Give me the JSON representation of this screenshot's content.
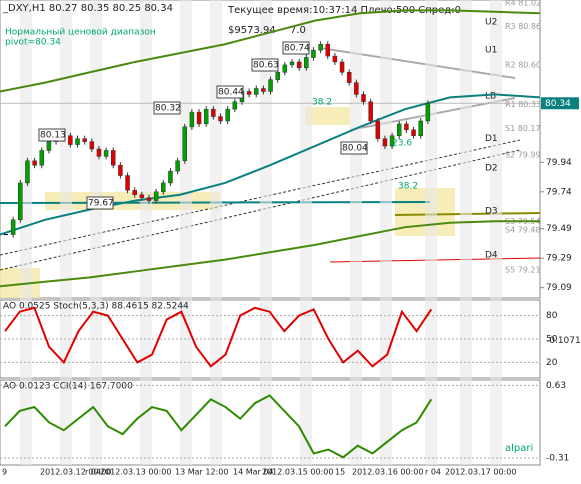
{
  "header": {
    "symbol": "_DXY,H1 80.27 80.35 80.25 80.34",
    "indicator": "Нормальный ценовой диапазон",
    "pivot": "pivot=80.34",
    "status": "Текущее время:10:37:14 Плечо:500 Спред:0",
    "balance": "$9573.94",
    "extra": "7.0",
    "logo": "alpari"
  },
  "annotations": [
    "80.13",
    "80.32",
    "80.44",
    "80.63",
    "80.74",
    "79.67",
    "80.04",
    "38.2",
    "23.6",
    "38.2"
  ],
  "time_labels": [
    "9",
    "2012.03.12 00:00",
    "r 04",
    "2012.03.13 00:00",
    "13 Mar 12:00",
    "14 Mar 04",
    "2012.03.15 00:00",
    "15",
    "2012.03.16 00:00",
    "r 04",
    "2012.03.17 00:00"
  ],
  "chart_data": [
    {
      "type": "candlestick",
      "color_up": "#00a000",
      "color_down": "#e00000",
      "values": [
        79.45,
        79.55,
        79.8,
        79.95,
        79.92,
        80.02,
        80.08,
        80.1,
        80.12,
        80.06,
        80.1,
        80.08,
        80.03,
        79.98,
        80.02,
        79.92,
        79.85,
        79.75,
        79.72,
        79.7,
        79.68,
        79.74,
        79.8,
        79.88,
        79.95,
        80.18,
        80.28,
        80.2,
        80.3,
        80.25,
        80.22,
        80.3,
        80.35,
        80.42,
        80.4,
        80.44,
        80.42,
        80.5,
        80.55,
        80.6,
        80.62,
        80.58,
        80.65,
        80.7,
        80.74,
        80.66,
        80.62,
        80.55,
        80.48,
        80.4,
        80.35,
        80.22,
        80.1,
        80.05,
        80.12,
        80.2,
        80.16,
        80.12,
        80.22,
        80.34
      ],
      "ylim": [
        79.02,
        81.04
      ],
      "yticks": [
        79.09,
        79.29,
        79.49,
        79.74,
        79.94
      ],
      "current_price": 80.34,
      "lines": [
        {
          "color": "#0a8080",
          "values": [
            79.45,
            79.55,
            79.62,
            79.68,
            79.72,
            79.8,
            79.92,
            80.05,
            80.18,
            80.3,
            80.38,
            80.4,
            80.38
          ]
        },
        {
          "color": "#4a8a10",
          "values": [
            80.42,
            80.48,
            80.55,
            80.62,
            80.68,
            80.74,
            80.82,
            80.9,
            80.95,
            80.97,
            80.97,
            80.96,
            80.95
          ]
        },
        {
          "color": "#4a8a10",
          "values": [
            79.1,
            79.13,
            79.16,
            79.2,
            79.24,
            79.28,
            79.33,
            79.38,
            79.44,
            79.5,
            79.53,
            79.54,
            79.54
          ]
        }
      ],
      "pivots": [
        {
          "label": "R4 81.02",
          "value": 81.02
        },
        {
          "label": "R3 80.86",
          "value": 80.86
        },
        {
          "label": "R2 80.60",
          "value": 80.6
        },
        {
          "label": "R1 80.33",
          "value": 80.33
        },
        {
          "label": "S1 80.17",
          "value": 80.17
        },
        {
          "label": "S2 79.99",
          "value": 79.99
        },
        {
          "label": "S3 79.54",
          "value": 79.54
        },
        {
          "label": "S4 79.48",
          "value": 79.48
        },
        {
          "label": "S5 79.21",
          "value": 79.21
        }
      ],
      "levels": [
        {
          "label": "U2",
          "value": 80.89
        },
        {
          "label": "U1",
          "value": 80.7
        },
        {
          "label": "LB",
          "value": 80.39
        },
        {
          "label": "D1",
          "value": 80.1
        },
        {
          "label": "D2",
          "value": 79.9
        },
        {
          "label": "D3",
          "value": 79.61
        },
        {
          "label": "D4",
          "value": 79.31
        }
      ]
    },
    {
      "type": "line",
      "title": "AO 0.0525 Stoch(5,3,3) 88.4615 82.5244",
      "color": "#e00000",
      "ylim": [
        0,
        100
      ],
      "yticks": [
        20,
        50,
        80
      ],
      "y2lim": [
        -0.3,
        0.1
      ],
      "y2ticks": [
        -0.1071
      ],
      "values": [
        60,
        85,
        90,
        40,
        20,
        60,
        85,
        80,
        50,
        20,
        30,
        75,
        85,
        40,
        15,
        30,
        80,
        90,
        85,
        60,
        80,
        88,
        50,
        20,
        35,
        15,
        30,
        85,
        60,
        88
      ]
    },
    {
      "type": "line",
      "title": "AO 0.0123 CCI(14) 167.7000",
      "color": "#2e8b00",
      "ylim": [
        -0.4,
        0.7
      ],
      "yticks": [
        -0.31,
        0.63
      ],
      "values": [
        0.1,
        0.3,
        0.35,
        0.15,
        0.05,
        0.2,
        0.35,
        0.1,
        0,
        0.2,
        0.35,
        0.3,
        0.05,
        0.25,
        0.45,
        0.35,
        0.2,
        0.4,
        0.5,
        0.3,
        0.1,
        -0.25,
        -0.2,
        -0.3,
        -0.15,
        -0.25,
        -0.1,
        0.05,
        0.15,
        0.45
      ]
    }
  ]
}
